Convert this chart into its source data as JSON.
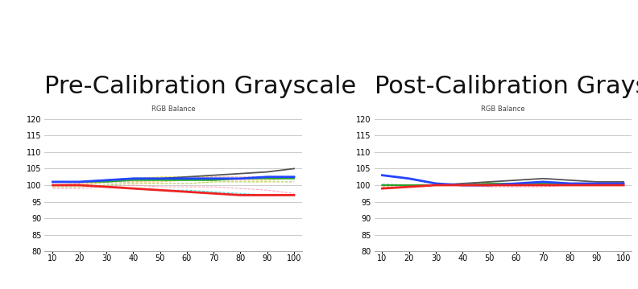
{
  "title1": "Pre-Calibration Grayscale",
  "title2": "Post-Calibration Grayscale",
  "subtitle": "RGB Balance",
  "x": [
    10,
    20,
    30,
    40,
    50,
    60,
    70,
    80,
    90,
    100
  ],
  "ylim": [
    80,
    121
  ],
  "yticks": [
    80,
    85,
    90,
    95,
    100,
    105,
    110,
    115,
    120
  ],
  "xticks": [
    10,
    20,
    30,
    40,
    50,
    60,
    70,
    80,
    90,
    100
  ],
  "pre_red": [
    100,
    100,
    99.5,
    99,
    98.5,
    98,
    97.5,
    97,
    97,
    97
  ],
  "pre_green": [
    101,
    101,
    101,
    101.5,
    101.5,
    101.5,
    101.5,
    102,
    102,
    102
  ],
  "pre_blue": [
    101,
    101,
    101.5,
    102,
    102,
    102,
    102,
    102,
    102.5,
    102.5
  ],
  "pre_dark": [
    101,
    101,
    101.5,
    102,
    102,
    102.5,
    103,
    103.5,
    104,
    105
  ],
  "pre_extras": [
    [
      100,
      100,
      101,
      102,
      102.5,
      102.5,
      102.5,
      102.5,
      102.5,
      102.5
    ],
    [
      100,
      100.5,
      101,
      101.5,
      102,
      102,
      102.5,
      102.5,
      102.5,
      102.5
    ],
    [
      100,
      100,
      99.5,
      99,
      98.5,
      98.5,
      98,
      97.5,
      97,
      97
    ],
    [
      99.5,
      99.5,
      100,
      100.5,
      100.5,
      100.5,
      101,
      101,
      101,
      101
    ],
    [
      99,
      99,
      99.5,
      100,
      99.5,
      99.5,
      99.5,
      99,
      98.5,
      97.5
    ],
    [
      100,
      100,
      100.5,
      101,
      101.5,
      101.5,
      101.5,
      102,
      102,
      102
    ],
    [
      100,
      100.5,
      101,
      101,
      101,
      101.5,
      101.5,
      101.5,
      101.5,
      102
    ]
  ],
  "pre_extra_colors": [
    "#cccc00",
    "#ff99ff",
    "#00dddd",
    "#99bb00",
    "#ff88aa",
    "#bbbbbb",
    "#ffaa44"
  ],
  "post_red": [
    99,
    99.5,
    100,
    100,
    100,
    100,
    100,
    100,
    100,
    100
  ],
  "post_green": [
    100,
    100,
    100,
    100,
    100.5,
    100.5,
    100.5,
    100.5,
    100.5,
    100.5
  ],
  "post_blue": [
    103,
    102,
    100.5,
    100,
    100,
    100.5,
    101,
    100.5,
    100.5,
    100.5
  ],
  "post_dark": [
    100,
    100,
    100,
    100.5,
    101,
    101.5,
    102,
    101.5,
    101,
    101
  ],
  "post_extras": [
    [
      100,
      100,
      100,
      100.5,
      100.5,
      100.5,
      100.5,
      100.5,
      100.5,
      100.5
    ],
    [
      99.5,
      99.5,
      100,
      100,
      100,
      100,
      100,
      100,
      100,
      100
    ],
    [
      100,
      100,
      100,
      100,
      100,
      100.5,
      101,
      100.5,
      100,
      100
    ],
    [
      99.5,
      99.5,
      100,
      100,
      100,
      100,
      100,
      100,
      100,
      100
    ],
    [
      100,
      100,
      100,
      100,
      99.5,
      99.5,
      99.5,
      100,
      100,
      100
    ],
    [
      100.5,
      100,
      100,
      100,
      100,
      100,
      100.5,
      100.5,
      100,
      100
    ],
    [
      100,
      100,
      100,
      100.5,
      100.5,
      100.5,
      100.5,
      100,
      100,
      100
    ]
  ],
  "post_extra_colors": [
    "#cccc00",
    "#ff99ff",
    "#00dddd",
    "#99bb00",
    "#ff88aa",
    "#bbbbbb",
    "#ffaa44"
  ],
  "bg_color": "#ffffff",
  "grid_color": "#cccccc",
  "spine_color": "#aaaaaa",
  "title_fontsize": 22,
  "subtitle_fontsize": 6,
  "tick_fontsize": 7
}
